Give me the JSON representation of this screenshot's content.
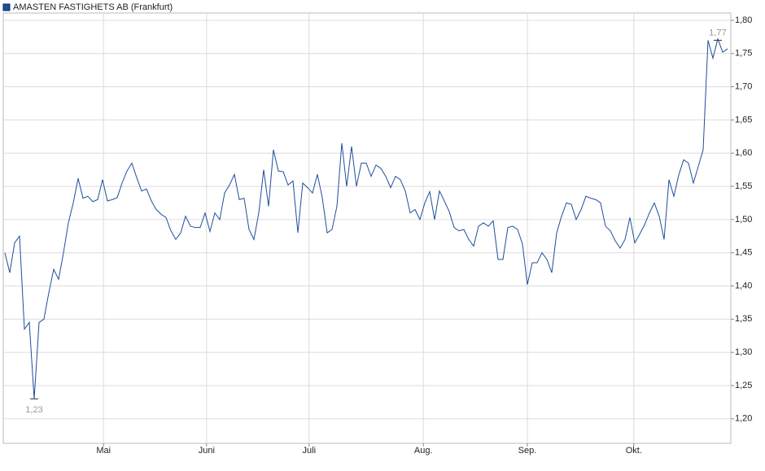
{
  "chart_data": {
    "type": "line",
    "title": "AMASTEN FASTIGHETS AB (Frankfurt)",
    "series": [
      {
        "name": "AMASTEN FASTIGHETS AB (Frankfurt)",
        "color": "#1f4e9a",
        "values": [
          1.45,
          1.42,
          1.465,
          1.475,
          1.335,
          1.345,
          1.23,
          1.345,
          1.35,
          1.39,
          1.425,
          1.41,
          1.45,
          1.495,
          1.525,
          1.562,
          1.532,
          1.535,
          1.527,
          1.53,
          1.56,
          1.528,
          1.53,
          1.533,
          1.555,
          1.573,
          1.585,
          1.563,
          1.543,
          1.546,
          1.528,
          1.515,
          1.508,
          1.503,
          1.483,
          1.47,
          1.48,
          1.505,
          1.49,
          1.488,
          1.488,
          1.51,
          1.482,
          1.51,
          1.5,
          1.54,
          1.552,
          1.568,
          1.53,
          1.532,
          1.485,
          1.47,
          1.51,
          1.575,
          1.52,
          1.605,
          1.573,
          1.572,
          1.552,
          1.558,
          1.48,
          1.555,
          1.548,
          1.54,
          1.568,
          1.533,
          1.48,
          1.485,
          1.52,
          1.615,
          1.55,
          1.61,
          1.55,
          1.585,
          1.585,
          1.565,
          1.582,
          1.577,
          1.565,
          1.548,
          1.565,
          1.56,
          1.543,
          1.51,
          1.515,
          1.5,
          1.525,
          1.542,
          1.5,
          1.543,
          1.528,
          1.512,
          1.488,
          1.483,
          1.485,
          1.47,
          1.46,
          1.49,
          1.495,
          1.49,
          1.498,
          1.44,
          1.44,
          1.488,
          1.49,
          1.485,
          1.463,
          1.402,
          1.435,
          1.435,
          1.45,
          1.44,
          1.42,
          1.48,
          1.505,
          1.525,
          1.523,
          1.5,
          1.515,
          1.535,
          1.532,
          1.53,
          1.525,
          1.49,
          1.483,
          1.468,
          1.457,
          1.47,
          1.503,
          1.465,
          1.478,
          1.492,
          1.51,
          1.525,
          1.505,
          1.47,
          1.56,
          1.535,
          1.567,
          1.59,
          1.585,
          1.555,
          1.58,
          1.605,
          1.77,
          1.743,
          1.772,
          1.752,
          1.757
        ]
      }
    ],
    "min_label": {
      "x": 6,
      "value": 1.23,
      "label": "1,23"
    },
    "max_label": {
      "x": 146,
      "value": 1.77,
      "label": "1,77"
    },
    "xlim": [
      -0.333,
      148.667
    ],
    "xticks": [
      {
        "value": 20.2,
        "label": "Mai"
      },
      {
        "value": 41.3,
        "label": "Juni"
      },
      {
        "value": 62.3,
        "label": "Juli"
      },
      {
        "value": 85.7,
        "label": "Aug."
      },
      {
        "value": 107,
        "label": "Sep."
      },
      {
        "value": 128.8,
        "label": "Okt."
      }
    ],
    "ylim": [
      1.163,
      1.811
    ],
    "yticks": [
      {
        "value": 1.2,
        "label": "1,20"
      },
      {
        "value": 1.25,
        "label": "1,25"
      },
      {
        "value": 1.3,
        "label": "1,30"
      },
      {
        "value": 1.35,
        "label": "1,35"
      },
      {
        "value": 1.4,
        "label": "1,40"
      },
      {
        "value": 1.45,
        "label": "1,45"
      },
      {
        "value": 1.5,
        "label": "1,50"
      },
      {
        "value": 1.55,
        "label": "1,55"
      },
      {
        "value": 1.6,
        "label": "1,60"
      },
      {
        "value": 1.65,
        "label": "1,65"
      },
      {
        "value": 1.7,
        "label": "1,70"
      },
      {
        "value": 1.75,
        "label": "1,75"
      },
      {
        "value": 1.8,
        "label": "1,80"
      }
    ],
    "grid": true
  }
}
